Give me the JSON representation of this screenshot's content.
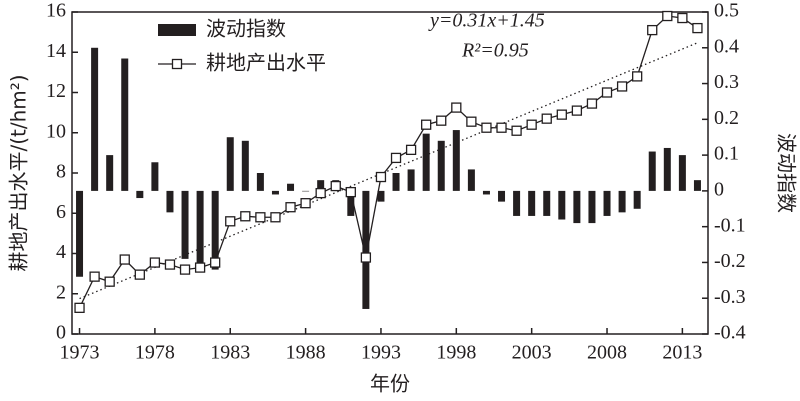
{
  "chart_data": {
    "type": "combo",
    "x_label": "年份",
    "y_label": "耕地产出水平/(t/hm²)",
    "y2_label": "波动指数",
    "x": [
      1973,
      1974,
      1975,
      1976,
      1977,
      1978,
      1979,
      1980,
      1981,
      1982,
      1983,
      1984,
      1985,
      1986,
      1987,
      1988,
      1989,
      1990,
      1991,
      1992,
      1993,
      1994,
      1995,
      1996,
      1997,
      1998,
      1999,
      2000,
      2001,
      2002,
      2003,
      2004,
      2005,
      2006,
      2007,
      2008,
      2009,
      2010,
      2011,
      2012,
      2013,
      2014
    ],
    "series": [
      {
        "name": "波动指数",
        "type": "bar",
        "axis": "y2",
        "color": "#231f20",
        "values": [
          -0.24,
          0.4,
          0.1,
          0.37,
          -0.02,
          0.08,
          -0.06,
          -0.19,
          -0.21,
          -0.22,
          0.15,
          0.14,
          0.05,
          -0.01,
          0.02,
          0,
          0.03,
          0.03,
          -0.07,
          -0.33,
          -0.03,
          0.05,
          0.06,
          0.16,
          0.14,
          0.17,
          0.06,
          -0.01,
          -0.03,
          -0.07,
          -0.07,
          -0.07,
          -0.08,
          -0.09,
          -0.09,
          -0.07,
          -0.06,
          -0.05,
          0.11,
          0.12,
          0.1,
          0.03
        ]
      },
      {
        "name": "耕地产出水平",
        "type": "line",
        "color": "#231f20",
        "values": [
          1.3,
          2.85,
          2.6,
          3.7,
          2.95,
          3.55,
          3.45,
          3.2,
          3.3,
          3.55,
          5.6,
          5.85,
          5.8,
          5.8,
          6.3,
          6.5,
          7.0,
          7.35,
          7.05,
          3.8,
          7.8,
          8.75,
          9.15,
          10.4,
          10.6,
          11.25,
          10.55,
          10.25,
          10.25,
          10.1,
          10.4,
          10.7,
          10.9,
          11.1,
          11.45,
          12.0,
          12.3,
          12.8,
          15.1,
          15.8,
          15.7,
          15.2
        ]
      }
    ],
    "trend": {
      "slope": 0.31,
      "intercept": 1.45,
      "equation": "y=0.31x+1.45",
      "r2_label": "R²=0.95"
    },
    "xlim": [
      1972.5,
      2014.7
    ],
    "xticks": [
      1973,
      1978,
      1983,
      1988,
      1993,
      1998,
      2003,
      2008,
      2013
    ],
    "ylim": [
      0,
      16
    ],
    "yticks": [
      0,
      2,
      4,
      6,
      8,
      10,
      12,
      14,
      16
    ],
    "y2lim": [
      -0.4,
      0.5
    ],
    "y2ticks": [
      {
        "value": -0.4,
        "label": "-0.4"
      },
      {
        "value": -0.3,
        "label": "-0.3"
      },
      {
        "value": -0.2,
        "label": "-0.2"
      },
      {
        "value": -0.1,
        "label": "-0.1"
      },
      0,
      {
        "value": 0.1,
        "label": "0.1"
      },
      {
        "value": 0.2,
        "label": "0.2"
      },
      {
        "value": 0.3,
        "label": "0.3"
      },
      {
        "value": 0.4,
        "label": "0.4"
      },
      {
        "value": 0.5,
        "label": "0.5"
      }
    ]
  }
}
